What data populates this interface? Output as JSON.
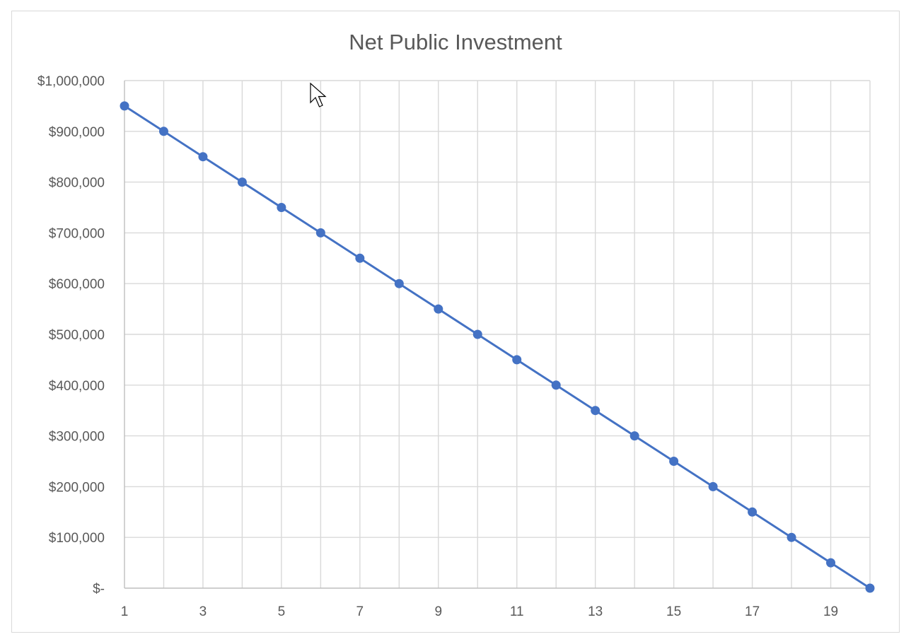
{
  "chart_data": {
    "type": "line",
    "title": "Net Public Investment",
    "xlabel": "",
    "ylabel": "",
    "x": [
      1,
      2,
      3,
      4,
      5,
      6,
      7,
      8,
      9,
      10,
      11,
      12,
      13,
      14,
      15,
      16,
      17,
      18,
      19,
      20
    ],
    "x_tick_labels": [
      "1",
      "3",
      "5",
      "7",
      "9",
      "11",
      "13",
      "15",
      "17",
      "19"
    ],
    "y_tick_labels": [
      "$-",
      "$100,000",
      "$200,000",
      "$300,000",
      "$400,000",
      "$500,000",
      "$600,000",
      "$700,000",
      "$800,000",
      "$900,000",
      "$1,000,000"
    ],
    "ylim": [
      0,
      1000000
    ],
    "grid": true,
    "series": [
      {
        "values": [
          950000,
          900000,
          850000,
          800000,
          750000,
          700000,
          650000,
          600000,
          550000,
          500000,
          450000,
          400000,
          350000,
          300000,
          250000,
          200000,
          150000,
          100000,
          50000,
          0
        ],
        "color": "#4472c4"
      }
    ]
  },
  "cursor": {
    "icon": "mouse-pointer-icon"
  }
}
